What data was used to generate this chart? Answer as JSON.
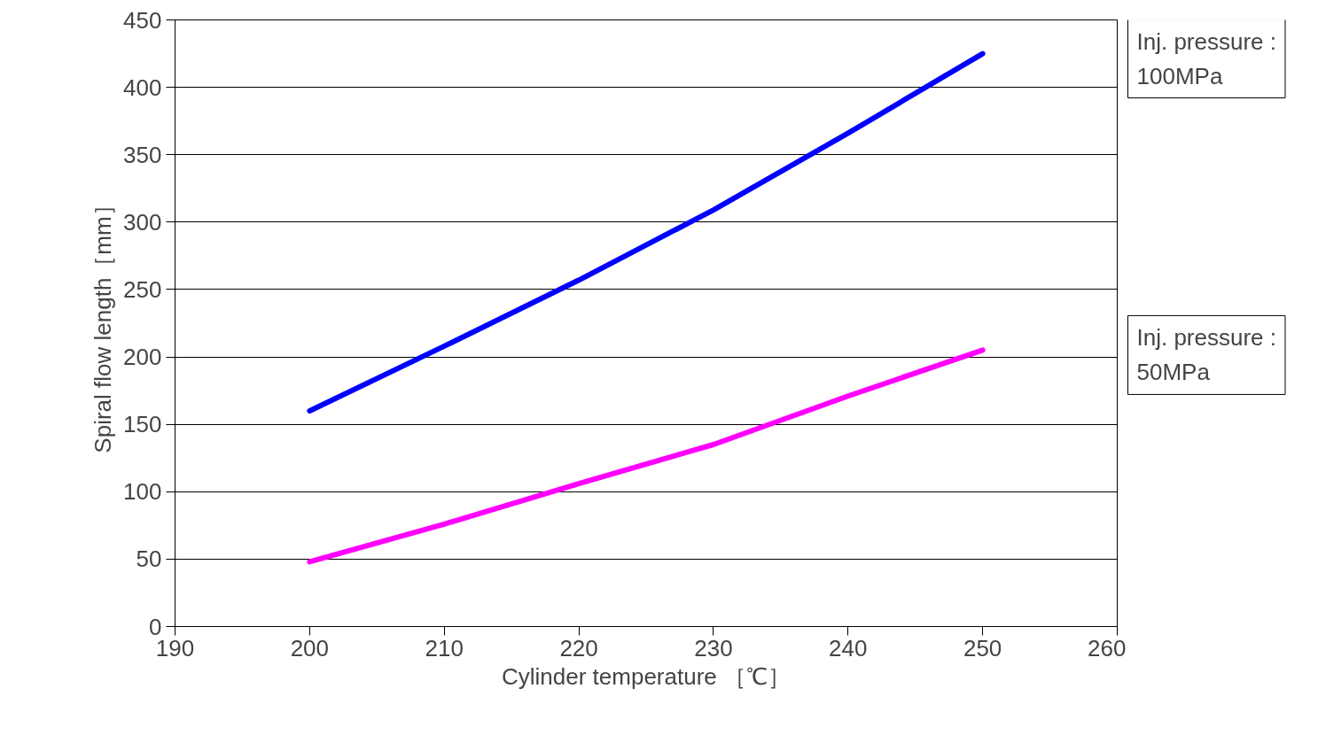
{
  "chart_data": {
    "type": "line",
    "xlabel": "Cylinder temperature ［℃］",
    "ylabel": "Spiral flow length［mm］",
    "x": [
      200,
      210,
      220,
      230,
      240,
      250
    ],
    "series": [
      {
        "name": "Inj. pressure : 100MPa",
        "color": "#0000ff",
        "values": [
          160,
          208,
          257,
          309,
          366,
          425
        ]
      },
      {
        "name": "Inj. pressure : 50MPa",
        "color": "#ff00ff",
        "values": [
          48,
          76,
          106,
          135,
          171,
          205
        ]
      }
    ],
    "xlim": [
      190,
      260
    ],
    "xticks": [
      190,
      200,
      210,
      220,
      230,
      240,
      250,
      260
    ],
    "ylim": [
      0,
      450
    ],
    "yticks": [
      0,
      50,
      100,
      150,
      200,
      250,
      300,
      350,
      400,
      450
    ],
    "grid": "y",
    "legend": false,
    "marker": "none",
    "line_style": "solid"
  }
}
